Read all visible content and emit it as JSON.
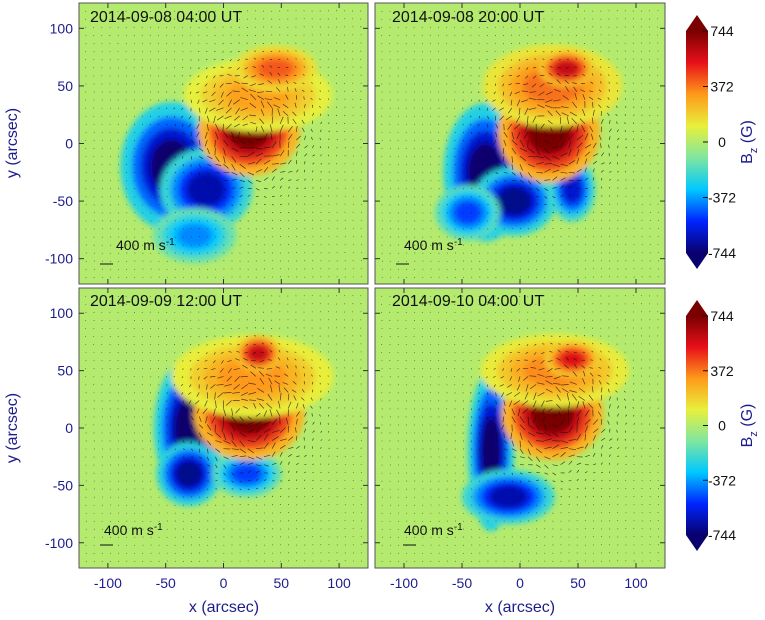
{
  "chart_data": {
    "type": "heatmap",
    "description_free": true,
    "xlabel": "x (arcsec)",
    "ylabel": "y (arcsec)",
    "xlim": [
      -125,
      125
    ],
    "ylim": [
      -122,
      122
    ],
    "x_ticks": [
      -100,
      -50,
      0,
      50,
      100
    ],
    "y_ticks": [
      -100,
      -50,
      0,
      50,
      100
    ],
    "colorbar": {
      "label_main": "B",
      "label_sub": "z",
      "label_unit": " (G)",
      "range": [
        -744,
        744
      ],
      "ticks": [
        744,
        372,
        0,
        -372,
        -744
      ],
      "colors": [
        "#08006e",
        "#0024ff",
        "#00c8ff",
        "#7fe6a0",
        "#e8f03c",
        "#ff9a1a",
        "#e8101a",
        "#7a0000"
      ]
    },
    "vector_scale": {
      "label": "400 m s",
      "superscript": "-1"
    },
    "panels": [
      {
        "timestamp": "2014-09-08 04:00 UT",
        "positive_blobs": [
          {
            "x": 22,
            "y": 12,
            "rx": 22,
            "ry": 20,
            "bz": 744
          },
          {
            "x": 30,
            "y": 42,
            "rx": 32,
            "ry": 16,
            "bz": 300
          },
          {
            "x": 45,
            "y": 65,
            "rx": 18,
            "ry": 10,
            "bz": 420
          }
        ],
        "negative_blobs": [
          {
            "x": -45,
            "y": -20,
            "rx": 22,
            "ry": 28,
            "bz": -744
          },
          {
            "x": -15,
            "y": -40,
            "rx": 20,
            "ry": 18,
            "bz": -650
          },
          {
            "x": -25,
            "y": -80,
            "rx": 18,
            "ry": 12,
            "bz": -400
          },
          {
            "x": 10,
            "y": 8,
            "rx": 10,
            "ry": 12,
            "bz": -300
          }
        ]
      },
      {
        "timestamp": "2014-09-08 20:00 UT",
        "positive_blobs": [
          {
            "x": 25,
            "y": 10,
            "rx": 22,
            "ry": 22,
            "bz": 744
          },
          {
            "x": 28,
            "y": 50,
            "rx": 30,
            "ry": 18,
            "bz": 380
          },
          {
            "x": 40,
            "y": 65,
            "rx": 12,
            "ry": 8,
            "bz": 600
          }
        ],
        "negative_blobs": [
          {
            "x": -30,
            "y": -25,
            "rx": 18,
            "ry": 30,
            "bz": -744
          },
          {
            "x": -5,
            "y": -50,
            "rx": 18,
            "ry": 15,
            "bz": -700
          },
          {
            "x": 45,
            "y": -40,
            "rx": 10,
            "ry": 14,
            "bz": -600
          },
          {
            "x": -45,
            "y": -60,
            "rx": 14,
            "ry": 12,
            "bz": -500
          }
        ]
      },
      {
        "timestamp": "2014-09-09 12:00 UT",
        "positive_blobs": [
          {
            "x": 22,
            "y": 12,
            "rx": 24,
            "ry": 20,
            "bz": 744
          },
          {
            "x": 25,
            "y": 45,
            "rx": 35,
            "ry": 18,
            "bz": 320
          },
          {
            "x": 30,
            "y": 65,
            "rx": 10,
            "ry": 8,
            "bz": 600
          }
        ],
        "negative_blobs": [
          {
            "x": -30,
            "y": 0,
            "rx": 15,
            "ry": 30,
            "bz": -744
          },
          {
            "x": -30,
            "y": -40,
            "rx": 14,
            "ry": 14,
            "bz": -700
          },
          {
            "x": 20,
            "y": -40,
            "rx": 15,
            "ry": 10,
            "bz": -500
          }
        ]
      },
      {
        "timestamp": "2014-09-10 04:00 UT",
        "positive_blobs": [
          {
            "x": 28,
            "y": 12,
            "rx": 22,
            "ry": 20,
            "bz": 744
          },
          {
            "x": 30,
            "y": 50,
            "rx": 32,
            "ry": 16,
            "bz": 340
          },
          {
            "x": 45,
            "y": 60,
            "rx": 12,
            "ry": 8,
            "bz": 550
          }
        ],
        "negative_blobs": [
          {
            "x": -25,
            "y": -20,
            "rx": 10,
            "ry": 35,
            "bz": -744
          },
          {
            "x": -10,
            "y": -60,
            "rx": 20,
            "ry": 12,
            "bz": -650
          }
        ]
      }
    ]
  }
}
